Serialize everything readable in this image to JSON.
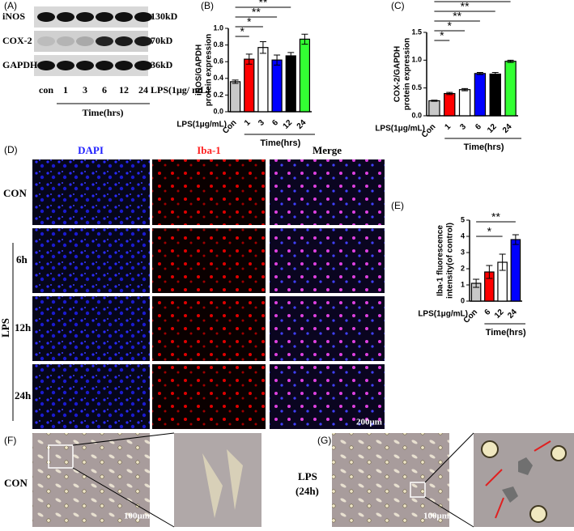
{
  "panels": {
    "a": {
      "label": "(A)",
      "bands": [
        "iNOS",
        "COX-2",
        "GAPDH"
      ],
      "sizes": [
        "130kD",
        "70kD",
        "36kD"
      ],
      "lanes": [
        "con",
        "1",
        "3",
        "6",
        "12",
        "24"
      ],
      "treatment": "LPS(1μg/ mL)",
      "xlabel": "Time(hrs)"
    },
    "b": {
      "label": "(B)"
    },
    "c": {
      "label": "(C)"
    },
    "d": {
      "label": "(D)",
      "columns": [
        "DAPI",
        "Iba-1",
        "Merge"
      ],
      "rows": [
        "CON",
        "6h",
        "12h",
        "24h"
      ],
      "group": "LPS",
      "scale": "200μm"
    },
    "e": {
      "label": "(E)"
    },
    "f": {
      "label": "(F)",
      "condition": [
        "CON"
      ],
      "scale": "100μm"
    },
    "g": {
      "label": "(G)",
      "condition": [
        "LPS",
        "(24h)"
      ],
      "scale": "100μm"
    }
  },
  "chart_data": [
    {
      "type": "bar",
      "ylabel": [
        "iNOS/GAPDH",
        "protein expression"
      ],
      "treatment": "LPS(1μg/mL)",
      "xlabel": "Time(hrs)",
      "categories": [
        "Con",
        "1",
        "3",
        "6",
        "12",
        "24"
      ],
      "values": [
        0.36,
        0.63,
        0.77,
        0.62,
        0.67,
        0.87
      ],
      "errors": [
        0.02,
        0.06,
        0.07,
        0.06,
        0.04,
        0.06
      ],
      "colors": [
        "#c8c8c8",
        "#ff0000",
        "#ffffff",
        "#0000ff",
        "#000000",
        "#33ff33"
      ],
      "significance": [
        null,
        "*",
        "*",
        "**",
        "**",
        "*"
      ],
      "ylim": [
        0,
        1.0
      ],
      "yticks": [
        {
          "value": 0,
          "label": "0.0"
        },
        0.2,
        0.4,
        0.6,
        0.8,
        {
          "value": 1,
          "label": "1.0"
        }
      ]
    },
    {
      "type": "bar",
      "ylabel": [
        "COX-2/GAPDH",
        "protein expression"
      ],
      "treatment": "LPS(1μg/mL)",
      "xlabel": "Time(hrs)",
      "categories": [
        "Con",
        "1",
        "3",
        "6",
        "12",
        "24"
      ],
      "values": [
        0.27,
        0.4,
        0.47,
        0.76,
        0.75,
        0.98
      ],
      "errors": [
        0.01,
        0.02,
        0.02,
        0.02,
        0.03,
        0.02
      ],
      "colors": [
        "#c8c8c8",
        "#ff0000",
        "#ffffff",
        "#0000ff",
        "#000000",
        "#33ff33"
      ],
      "significance": [
        null,
        "*",
        "*",
        "**",
        "**",
        "*"
      ],
      "ylim": [
        0,
        1.5
      ],
      "yticks": [
        {
          "value": 0,
          "label": "0.0"
        },
        0.5,
        {
          "value": 1,
          "label": "1.0"
        },
        1.5
      ]
    },
    {
      "type": "bar",
      "ylabel": [
        "Iba-1 fluorescence",
        "intensity(of control)"
      ],
      "treatment": "LPS(1μg/mL)",
      "xlabel": "Time(hrs)",
      "categories": [
        "Con",
        "6",
        "12",
        "24"
      ],
      "values": [
        1.1,
        1.8,
        2.4,
        3.8
      ],
      "errors": [
        0.25,
        0.4,
        0.5,
        0.3
      ],
      "colors": [
        "#c8c8c8",
        "#ff0000",
        "#ffffff",
        "#0000ff"
      ],
      "significance": [
        null,
        null,
        "*",
        "**"
      ],
      "ylim": [
        0,
        5
      ],
      "yticks": [
        0,
        1,
        2,
        3,
        4,
        5
      ]
    }
  ]
}
